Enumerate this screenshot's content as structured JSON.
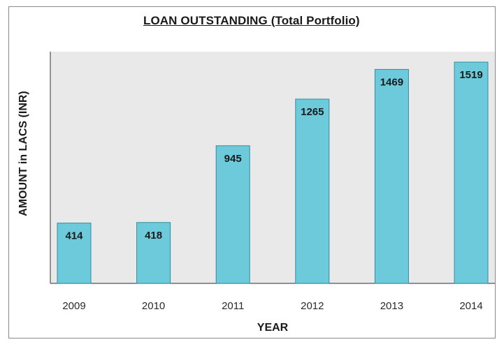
{
  "chart_data": {
    "type": "bar",
    "title": "LOAN OUTSTANDING (Total Portfolio)",
    "xlabel": "YEAR",
    "ylabel": "AMOUNT in LACS (INR)",
    "categories": [
      "2009",
      "2010",
      "2011",
      "2012",
      "2013",
      "2014"
    ],
    "values": [
      414,
      418,
      945,
      1265,
      1469,
      1519
    ],
    "ylim": [
      0,
      1519
    ],
    "grid": false,
    "legend": "none",
    "bar_color": "#6ccadb",
    "bar_stroke": "#2f8ea0",
    "plot_background": "#e9e9e9"
  }
}
